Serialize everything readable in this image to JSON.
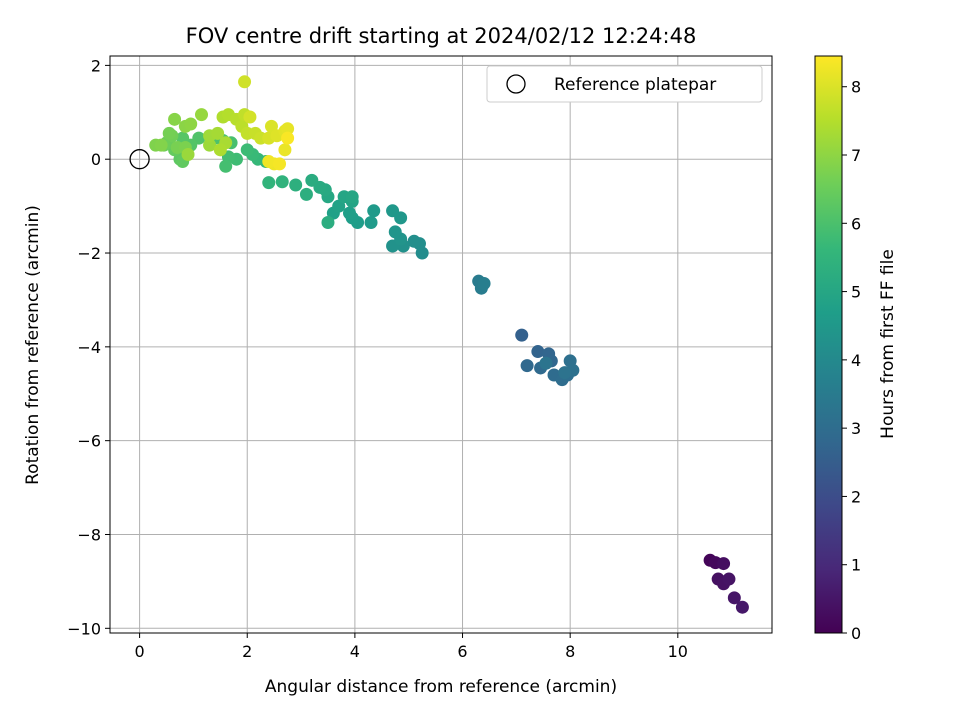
{
  "chart_data": {
    "type": "scatter",
    "title": "FOV centre drift starting at 2024/02/12 12:24:48",
    "xlabel": "Angular distance from reference (arcmin)",
    "ylabel": "Rotation from reference (arcmin)",
    "xlim": [
      -0.55,
      11.75
    ],
    "ylim": [
      -10.1,
      2.2
    ],
    "x_ticks": [
      0,
      2,
      4,
      6,
      8,
      10
    ],
    "y_ticks": [
      -10,
      -8,
      -6,
      -4,
      -2,
      0,
      2
    ],
    "grid": true,
    "legend": {
      "position": "top-right",
      "entries": [
        "Reference platepar"
      ]
    },
    "reference_point": {
      "x": 0,
      "y": 0,
      "label": "Reference platepar"
    },
    "colorbar": {
      "label": "Hours from first FF file",
      "min": 0,
      "max": 8.45,
      "ticks": [
        0,
        1,
        2,
        3,
        4,
        5,
        6,
        7,
        8
      ],
      "colormap": "viridis"
    },
    "colormap_stops": [
      "#440154",
      "#482878",
      "#3e4989",
      "#31688e",
      "#26828e",
      "#1f9e89",
      "#35b779",
      "#6ece58",
      "#b5de2b",
      "#fde725"
    ],
    "points": [
      [
        10.6,
        -8.55,
        0.1
      ],
      [
        10.7,
        -8.6,
        0.2
      ],
      [
        10.85,
        -8.62,
        0.3
      ],
      [
        10.75,
        -8.95,
        0.35
      ],
      [
        10.85,
        -9.05,
        0.4
      ],
      [
        10.95,
        -8.95,
        0.45
      ],
      [
        11.05,
        -9.35,
        0.5
      ],
      [
        11.2,
        -9.55,
        0.55
      ],
      [
        7.1,
        -3.75,
        2.6
      ],
      [
        7.4,
        -4.1,
        2.7
      ],
      [
        7.6,
        -4.15,
        2.75
      ],
      [
        7.65,
        -4.3,
        2.8
      ],
      [
        7.2,
        -4.4,
        2.85
      ],
      [
        7.45,
        -4.45,
        2.9
      ],
      [
        7.7,
        -4.6,
        2.95
      ],
      [
        7.85,
        -4.7,
        3.0
      ],
      [
        7.95,
        -4.6,
        3.05
      ],
      [
        8.0,
        -4.3,
        3.1
      ],
      [
        8.05,
        -4.5,
        3.15
      ],
      [
        7.9,
        -4.55,
        3.2
      ],
      [
        7.55,
        -4.35,
        3.25
      ],
      [
        6.3,
        -2.6,
        3.5
      ],
      [
        6.35,
        -2.75,
        3.55
      ],
      [
        6.4,
        -2.65,
        3.6
      ],
      [
        5.25,
        -2.0,
        4.1
      ],
      [
        5.2,
        -1.8,
        4.15
      ],
      [
        5.1,
        -1.75,
        4.2
      ],
      [
        4.9,
        -1.85,
        4.25
      ],
      [
        4.7,
        -1.85,
        4.3
      ],
      [
        4.85,
        -1.7,
        4.35
      ],
      [
        4.75,
        -1.55,
        4.4
      ],
      [
        4.85,
        -1.25,
        4.45
      ],
      [
        4.7,
        -1.1,
        4.5
      ],
      [
        4.35,
        -1.1,
        4.55
      ],
      [
        4.3,
        -1.35,
        4.6
      ],
      [
        4.05,
        -1.35,
        4.65
      ],
      [
        3.95,
        -1.25,
        4.7
      ],
      [
        3.9,
        -1.15,
        4.75
      ],
      [
        3.6,
        -1.15,
        4.8
      ],
      [
        3.7,
        -1.0,
        4.85
      ],
      [
        3.95,
        -0.9,
        4.9
      ],
      [
        3.8,
        -0.8,
        4.95
      ],
      [
        3.95,
        -0.8,
        5.0
      ],
      [
        3.5,
        -0.8,
        5.05
      ],
      [
        3.45,
        -0.65,
        5.1
      ],
      [
        3.35,
        -0.6,
        5.15
      ],
      [
        3.2,
        -0.45,
        5.2
      ],
      [
        3.5,
        -1.35,
        5.25
      ],
      [
        3.1,
        -0.75,
        5.3
      ],
      [
        2.9,
        -0.55,
        5.35
      ],
      [
        2.65,
        -0.48,
        5.45
      ],
      [
        2.4,
        -0.5,
        5.5
      ],
      [
        2.35,
        -0.05,
        5.55
      ],
      [
        2.2,
        0.0,
        5.65
      ],
      [
        2.1,
        0.1,
        5.7
      ],
      [
        2.0,
        0.2,
        5.75
      ],
      [
        1.8,
        0.0,
        5.8
      ],
      [
        1.65,
        0.05,
        5.85
      ],
      [
        1.6,
        -0.15,
        5.9
      ],
      [
        1.7,
        0.35,
        5.95
      ],
      [
        1.55,
        0.4,
        6.0
      ],
      [
        1.4,
        0.45,
        6.05
      ],
      [
        1.1,
        0.45,
        6.1
      ],
      [
        0.95,
        0.3,
        6.15
      ],
      [
        0.8,
        0.45,
        6.2
      ],
      [
        0.85,
        0.1,
        6.25
      ],
      [
        0.75,
        0.0,
        6.3
      ],
      [
        0.8,
        -0.05,
        6.35
      ],
      [
        0.65,
        0.2,
        6.4
      ],
      [
        0.55,
        0.35,
        6.45
      ],
      [
        0.5,
        0.35,
        6.5
      ],
      [
        0.45,
        0.3,
        6.55
      ],
      [
        0.6,
        0.5,
        6.6
      ],
      [
        0.55,
        0.55,
        6.65
      ],
      [
        0.7,
        0.25,
        6.7
      ],
      [
        0.85,
        0.25,
        6.75
      ],
      [
        0.3,
        0.3,
        6.8
      ],
      [
        0.4,
        0.3,
        6.85
      ],
      [
        0.65,
        0.85,
        6.9
      ],
      [
        0.85,
        0.7,
        6.95
      ],
      [
        0.95,
        0.75,
        7.0
      ],
      [
        1.15,
        0.95,
        7.1
      ],
      [
        0.9,
        0.1,
        7.15
      ],
      [
        1.3,
        0.3,
        7.2
      ],
      [
        1.3,
        0.5,
        7.25
      ],
      [
        1.45,
        0.55,
        7.3
      ],
      [
        1.6,
        0.35,
        7.35
      ],
      [
        1.5,
        0.2,
        7.4
      ],
      [
        1.55,
        0.9,
        7.45
      ],
      [
        1.65,
        0.95,
        7.5
      ],
      [
        1.8,
        0.85,
        7.55
      ],
      [
        1.9,
        0.7,
        7.6
      ],
      [
        1.95,
        0.95,
        7.65
      ],
      [
        2.0,
        0.55,
        7.7
      ],
      [
        2.15,
        0.55,
        7.75
      ],
      [
        2.25,
        0.45,
        7.8
      ],
      [
        1.95,
        1.65,
        7.85
      ],
      [
        2.05,
        0.9,
        7.9
      ],
      [
        2.4,
        0.45,
        7.95
      ],
      [
        2.45,
        0.7,
        8.0
      ],
      [
        2.55,
        0.5,
        8.05
      ],
      [
        2.7,
        0.6,
        8.1
      ],
      [
        2.75,
        0.65,
        8.15
      ],
      [
        2.7,
        0.2,
        8.2
      ],
      [
        2.5,
        -0.1,
        8.25
      ],
      [
        2.4,
        -0.05,
        8.3
      ],
      [
        2.6,
        -0.1,
        8.35
      ],
      [
        2.75,
        0.45,
        8.4
      ]
    ]
  }
}
